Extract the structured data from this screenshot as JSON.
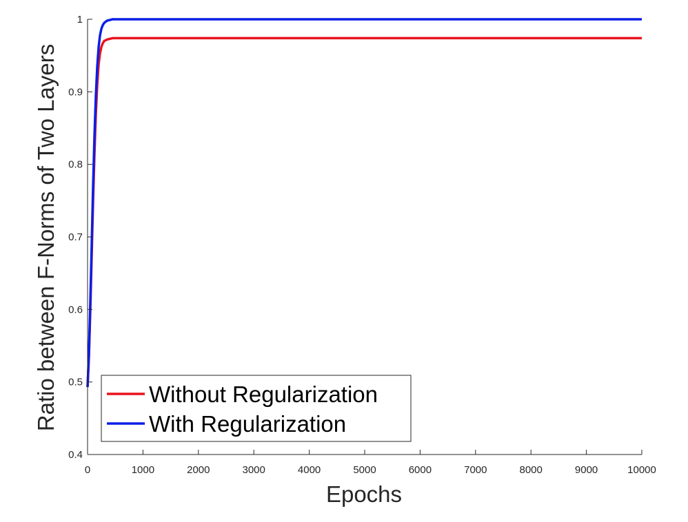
{
  "chart_data": {
    "type": "line",
    "xlabel": "Epochs",
    "ylabel": "Ratio between F-Norms of Two Layers",
    "xlim": [
      0,
      10000
    ],
    "ylim": [
      0.4,
      1
    ],
    "xticks": [
      0,
      1000,
      2000,
      3000,
      4000,
      5000,
      6000,
      7000,
      8000,
      9000,
      10000
    ],
    "yticks": [
      0.4,
      0.5,
      0.6,
      0.7,
      0.8,
      0.9,
      1
    ],
    "ytick_labels": [
      "0.4",
      "0.5",
      "0.6",
      "0.7",
      "0.8",
      "0.9",
      "1"
    ],
    "grid": false,
    "legend_position": "bottom-left",
    "series": [
      {
        "name": "Without Regularization",
        "color": "#e8141b",
        "x": [
          0,
          25,
          50,
          75,
          100,
          125,
          150,
          175,
          200,
          225,
          250,
          275,
          300,
          350,
          400,
          450,
          500,
          600,
          800,
          1000,
          10000
        ],
        "y": [
          0.493,
          0.535,
          0.6,
          0.675,
          0.75,
          0.815,
          0.87,
          0.91,
          0.938,
          0.953,
          0.962,
          0.967,
          0.97,
          0.972,
          0.973,
          0.974,
          0.974,
          0.974,
          0.974,
          0.974,
          0.974
        ]
      },
      {
        "name": "With Regularization",
        "color": "#0a1ee6",
        "x": [
          0,
          25,
          50,
          75,
          100,
          125,
          150,
          175,
          200,
          225,
          250,
          275,
          300,
          350,
          400,
          450,
          500,
          600,
          800,
          1000,
          10000
        ],
        "y": [
          0.493,
          0.54,
          0.61,
          0.69,
          0.77,
          0.84,
          0.895,
          0.935,
          0.962,
          0.978,
          0.987,
          0.992,
          0.995,
          0.998,
          0.999,
          1.0,
          1.0,
          1.0,
          1.0,
          1.0,
          1.0
        ]
      }
    ]
  }
}
